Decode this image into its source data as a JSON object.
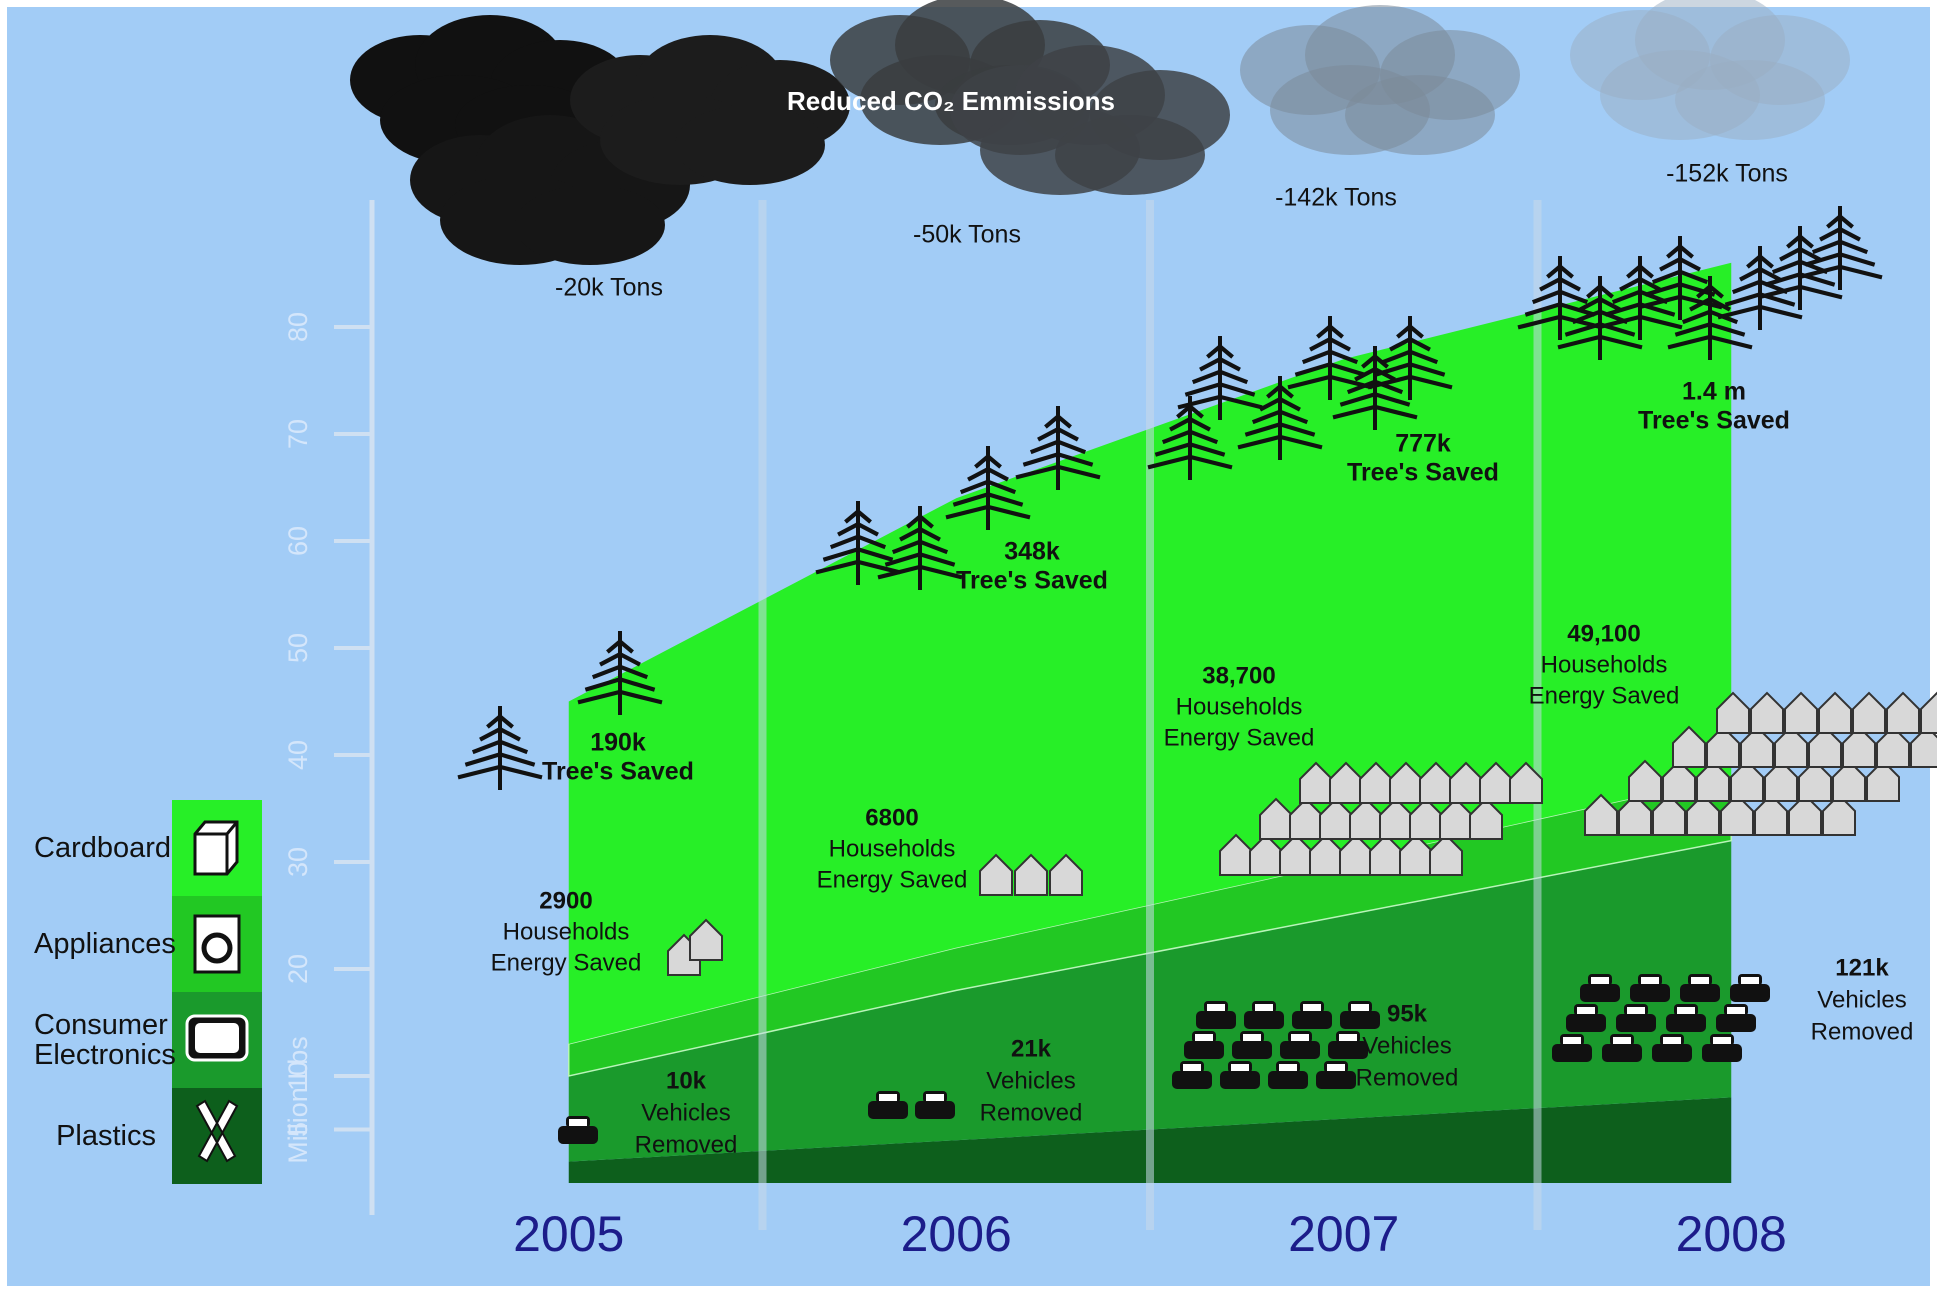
{
  "chart_data": {
    "type": "stacked_area",
    "title": "Reduced CO₂ Emmissions",
    "y_label": "Million Lbs",
    "categories": [
      "2005",
      "2006",
      "2007",
      "2008"
    ],
    "series": [
      {
        "name": "Plastics",
        "color": "#0d5f1c",
        "values": [
          2,
          4,
          6,
          8
        ]
      },
      {
        "name": "Consumer Electronics",
        "color": "#1a9a2c",
        "values": [
          8,
          14,
          19,
          24
        ]
      },
      {
        "name": "Appliances",
        "color": "#22c823",
        "values": [
          3,
          4,
          5,
          6
        ]
      },
      {
        "name": "Cardboard",
        "color": "#27ef27",
        "values": [
          32,
          42,
          47,
          48
        ]
      }
    ],
    "ylim": [
      0,
      90
    ],
    "yticks": [
      5,
      10,
      20,
      30,
      40,
      50,
      60,
      70,
      80
    ],
    "legend": "left",
    "annotations": [
      {
        "tons": "-20k Tons",
        "trees": "190k",
        "trees_label": "Tree's Saved",
        "households": "2900",
        "households_lines": [
          "Households",
          "Energy Saved"
        ],
        "vehicles": "10k",
        "vehicles_lines": [
          "Vehicles",
          "Removed"
        ]
      },
      {
        "tons": "-50k Tons",
        "trees": "348k",
        "trees_label": "Tree's Saved",
        "households": "6800",
        "households_lines": [
          "Households",
          "Energy Saved"
        ],
        "vehicles": "21k",
        "vehicles_lines": [
          "Vehicles",
          "Removed"
        ]
      },
      {
        "tons": "-142k Tons",
        "trees": "777k",
        "trees_label": "Tree's Saved",
        "households": "38,700",
        "households_lines": [
          "Households",
          "Energy Saved"
        ],
        "vehicles": "95k",
        "vehicles_lines": [
          "Vehicles",
          "Removed"
        ]
      },
      {
        "tons": "-152k Tons",
        "trees": "1.4 m",
        "trees_label": "Tree's Saved",
        "households": "49,100",
        "households_lines": [
          "Households",
          "Energy Saved"
        ],
        "vehicles": "121k",
        "vehicles_lines": [
          "Vehicles",
          "Removed"
        ]
      }
    ]
  }
}
